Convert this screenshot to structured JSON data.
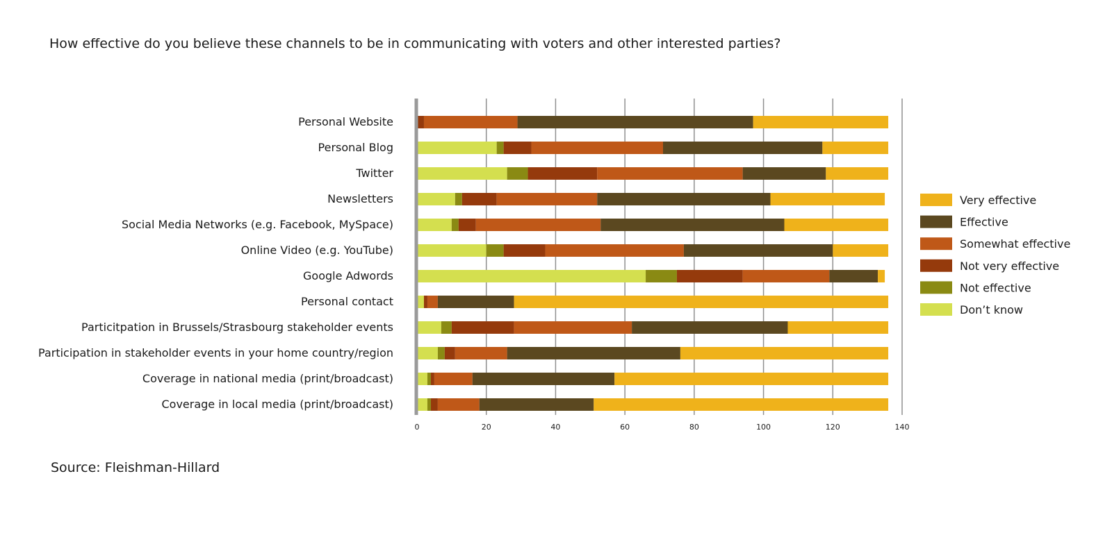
{
  "title": "How effective do you believe these channels to be in communicating with voters and other interested parties?",
  "source": "Source: Fleishman-Hillard",
  "chart_data": {
    "type": "bar",
    "orientation": "horizontal",
    "stacked": true,
    "title": "How effective do you believe these channels to be in communicating with voters and other interested parties?",
    "xlim": [
      0,
      140
    ],
    "xticks": [
      0,
      20,
      40,
      60,
      80,
      100,
      120,
      140
    ],
    "grid": true,
    "legend_position": "right",
    "categories": [
      "Personal Website",
      "Personal Blog",
      "Twitter",
      "Newsletters",
      "Social Media Networks  (e.g. Facebook, MySpace)",
      "Online Video (e.g. YouTube)",
      "Google Adwords",
      "Personal contact",
      "Particitpation in Brussels/Strasbourg stakeholder events",
      "Participation in stakeholder events in your home country/region",
      "Coverage in national media (print/broadcast)",
      "Coverage in local media (print/broadcast)"
    ],
    "series": [
      {
        "name": "Don’t know",
        "color": "#d4df4f",
        "values": [
          0,
          23,
          26,
          11,
          10,
          20,
          66,
          2,
          7,
          6,
          3,
          3
        ]
      },
      {
        "name": "Not effective",
        "color": "#8a8a13",
        "values": [
          0,
          2,
          6,
          2,
          2,
          5,
          9,
          0,
          3,
          2,
          1,
          1
        ]
      },
      {
        "name": "Not very effective",
        "color": "#953a0c",
        "values": [
          2,
          8,
          20,
          10,
          5,
          12,
          19,
          1,
          18,
          3,
          1,
          2
        ]
      },
      {
        "name": "Somewhat effective",
        "color": "#bf5818",
        "values": [
          27,
          38,
          42,
          29,
          36,
          40,
          25,
          3,
          34,
          15,
          11,
          12
        ]
      },
      {
        "name": "Effective",
        "color": "#5b4820",
        "values": [
          68,
          46,
          24,
          50,
          53,
          43,
          14,
          22,
          45,
          50,
          41,
          33
        ]
      },
      {
        "name": "Very effective",
        "color": "#efb21b",
        "values": [
          39,
          19,
          18,
          33,
          30,
          16,
          2,
          108,
          29,
          60,
          79,
          85
        ]
      }
    ],
    "legend_order": [
      "Very effective",
      "Effective",
      "Somewhat effective",
      "Not very effective",
      "Not effective",
      "Don’t know"
    ]
  }
}
